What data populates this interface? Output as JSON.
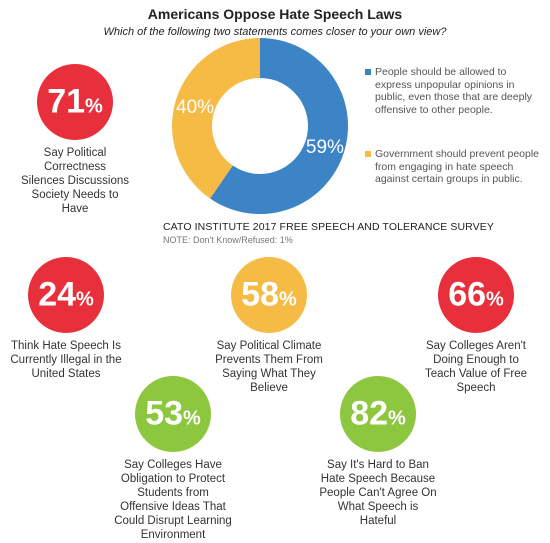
{
  "title": "Americans Oppose Hate Speech Laws",
  "subtitle": "Which of the following two statements comes closer to your own view?",
  "colors": {
    "blue": "#3d84c6",
    "yellow": "#f5bb44",
    "red": "#e8303d",
    "green": "#8dc63f"
  },
  "chart_data": {
    "type": "pie",
    "donut": true,
    "categories": [
      "People should be allowed to express unpopular opinions in public, even those that are deeply offensive to other people.",
      "Government should prevent people from engaging in hate speech against certain groups in public."
    ],
    "values": [
      59,
      40
    ],
    "value_labels": [
      "59%",
      "40%"
    ],
    "colors": [
      "#3d84c6",
      "#f5bb44"
    ],
    "legend_position": "right"
  },
  "source": "CATO INSTITUTE 2017 FREE SPEECH AND TOLERANCE SURVEY",
  "note": "NOTE: Don't Know/Refused: 1%",
  "stats": [
    {
      "value": "71",
      "suffix": "%",
      "color": "#e8303d",
      "caption": "Say Political Correctness Silences Discussions Society Needs to Have"
    },
    {
      "value": "24",
      "suffix": "%",
      "color": "#e8303d",
      "caption": "Think Hate Speech Is Currently Illegal in the United States"
    },
    {
      "value": "58",
      "suffix": "%",
      "color": "#f5bb44",
      "caption": "Say Political Climate Prevents Them From Saying What They Believe"
    },
    {
      "value": "66",
      "suffix": "%",
      "color": "#e8303d",
      "caption": "Say Colleges Aren't Doing Enough to Teach Value of Free Speech"
    },
    {
      "value": "53",
      "suffix": "%",
      "color": "#8dc63f",
      "caption": "Say Colleges Have Obligation to Protect Students from Offensive Ideas That Could Disrupt Learning Environment"
    },
    {
      "value": "82",
      "suffix": "%",
      "color": "#8dc63f",
      "caption": "Say It's Hard to Ban Hate Speech Because People Can't Agree On What Speech is Hateful"
    }
  ]
}
